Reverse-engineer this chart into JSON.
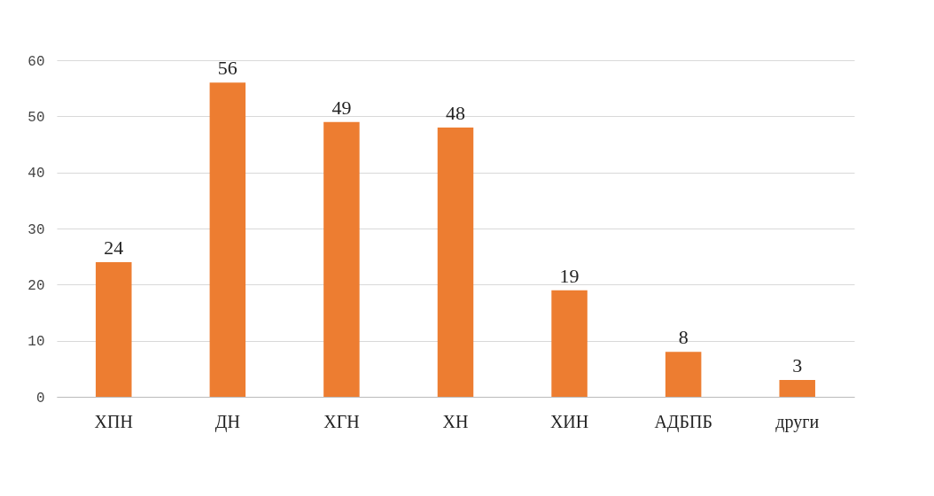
{
  "chart_data": {
    "type": "bar",
    "categories": [
      "ХПН",
      "ДН",
      "ХГН",
      "ХН",
      "ХИН",
      "АДБПБ",
      "други"
    ],
    "values": [
      24,
      56,
      49,
      48,
      19,
      8,
      3
    ],
    "color": "#ed7d31",
    "ylim": [
      0,
      60
    ],
    "yticks": [
      0,
      10,
      20,
      30,
      40,
      50,
      60
    ],
    "grid": "y",
    "data_labels": true
  }
}
